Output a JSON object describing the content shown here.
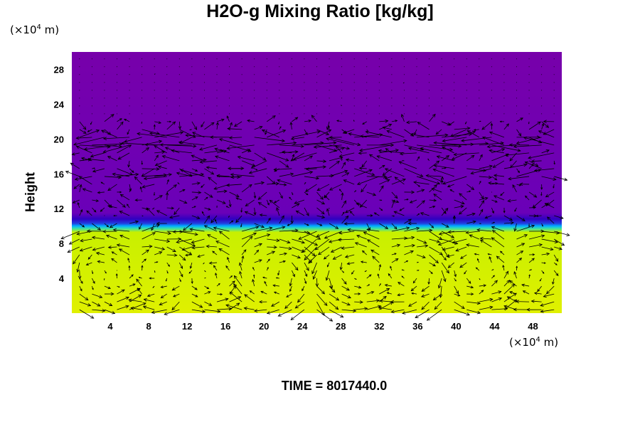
{
  "chart_data": {
    "type": "heatmap",
    "title": "H2O-g Mixing Ratio [kg/kg]",
    "ylabel": "Height",
    "xlabel": "",
    "x_unit": {
      "prefix": "(×10",
      "exp": "4",
      "suffix": " m)"
    },
    "y_unit": {
      "prefix": "(×10",
      "exp": "4",
      "suffix": " m)"
    },
    "xlim": [
      0,
      51
    ],
    "ylim": [
      0,
      30
    ],
    "x_ticks": [
      "4",
      "8",
      "12",
      "16",
      "20",
      "24",
      "28",
      "32",
      "36",
      "40",
      "44",
      "48"
    ],
    "y_ticks": [
      "4",
      "8",
      "12",
      "16",
      "20",
      "24",
      "28"
    ],
    "field": {
      "description_levels": [
        {
          "height": 0,
          "color": "#e0f000"
        },
        {
          "height": 9.3,
          "color": "#c8f000"
        },
        {
          "height": 9.7,
          "color": "#40e0a0"
        },
        {
          "height": 10.0,
          "color": "#00b0ff"
        },
        {
          "height": 10.3,
          "color": "#2040e0"
        },
        {
          "height": 10.8,
          "color": "#3000c0"
        },
        {
          "height": 11.5,
          "color": "#6a00b8"
        },
        {
          "height": 30,
          "color": "#7700aa"
        }
      ],
      "moist_layer_top": 10.0
    },
    "vectors": {
      "type": "wind",
      "lower_cells": [
        4,
        9,
        14,
        21,
        30,
        35,
        42,
        48
      ],
      "upper_jet_heights": [
        16,
        19,
        20
      ]
    }
  },
  "footer": {
    "time_label": "TIME = 8017440.0"
  },
  "colors": {
    "moist": "#e0f000",
    "dry": "#7700aa",
    "transition": "#00b0ff",
    "arrow": "#000000"
  }
}
